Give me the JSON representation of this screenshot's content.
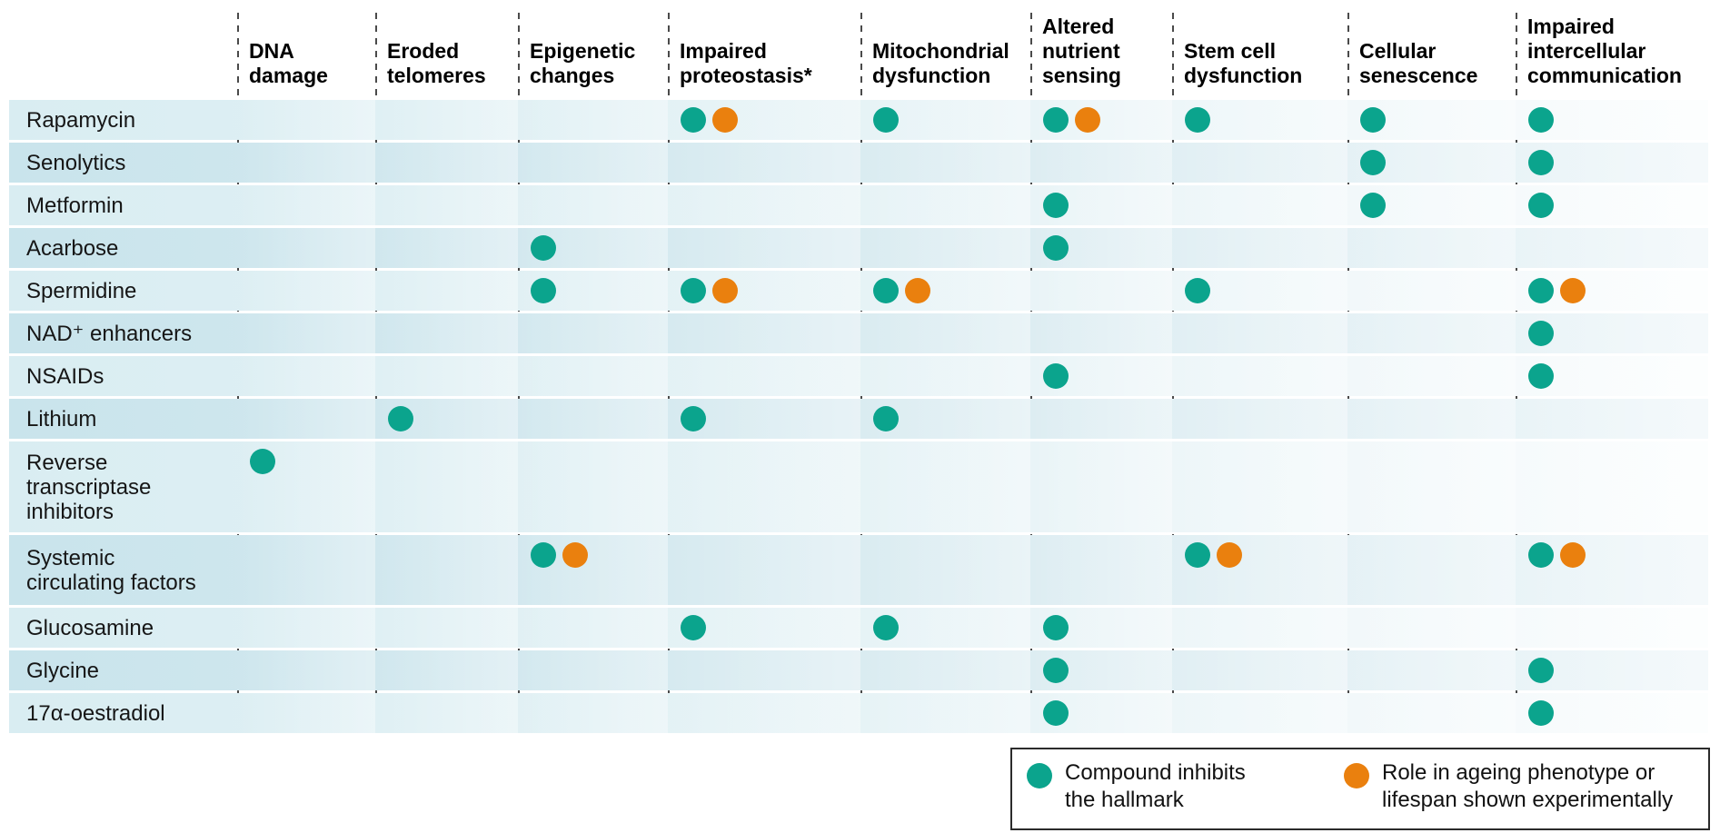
{
  "chart_data": {
    "type": "table",
    "description_of_marks": "dot matrix: compounds (rows) vs hallmarks of ageing (columns)",
    "columns": [
      "DNA\ndamage",
      "Eroded\ntelomeres",
      "Epigenetic\nchanges",
      "Impaired\nproteostasis*",
      "Mitochondrial\ndysfunction",
      "Altered\nnutrient\nsensing",
      "Stem cell\ndysfunction",
      "Cellular\nsenescence",
      "Impaired\nintercellular\ncommunication"
    ],
    "rows": [
      "Rapamycin",
      "Senolytics",
      "Metformin",
      "Acarbose",
      "Spermidine",
      "NAD⁺ enhancers",
      "NSAIDs",
      "Lithium",
      "Reverse\ntranscriptase\ninhibitors",
      "Systemic\ncirculating factors",
      "Glucosamine",
      "Glycine",
      "17α-oestradiol"
    ],
    "cell_codes": {
      "": "no mark",
      "T": "teal dot — compound inhibits the hallmark",
      "TO": "teal dot + orange dot — inhibits hallmark and role in ageing phenotype or lifespan shown experimentally"
    },
    "cells": [
      [
        "",
        "",
        "",
        "TO",
        "T",
        "TO",
        "T",
        "T",
        "T"
      ],
      [
        "",
        "",
        "",
        "",
        "",
        "",
        "",
        "T",
        "T"
      ],
      [
        "",
        "",
        "",
        "",
        "",
        "T",
        "",
        "T",
        "T"
      ],
      [
        "",
        "",
        "T",
        "",
        "",
        "T",
        "",
        "",
        ""
      ],
      [
        "",
        "",
        "T",
        "TO",
        "TO",
        "",
        "T",
        "",
        "TO"
      ],
      [
        "",
        "",
        "",
        "",
        "",
        "",
        "",
        "",
        "T"
      ],
      [
        "",
        "",
        "",
        "",
        "",
        "T",
        "",
        "",
        "T"
      ],
      [
        "",
        "T",
        "",
        "T",
        "T",
        "",
        "",
        "",
        ""
      ],
      [
        "T",
        "",
        "",
        "",
        "",
        "",
        "",
        "",
        ""
      ],
      [
        "",
        "",
        "TO",
        "",
        "",
        "",
        "TO",
        "",
        "TO"
      ],
      [
        "",
        "",
        "",
        "T",
        "T",
        "T",
        "",
        "",
        ""
      ],
      [
        "",
        "",
        "",
        "",
        "",
        "T",
        "",
        "",
        "T"
      ],
      [
        "",
        "",
        "",
        "",
        "",
        "T",
        "",
        "",
        "T"
      ]
    ],
    "legend": [
      {
        "marker": "inhibits-dot",
        "color": "#0ba48d",
        "label": "Compound inhibits\nthe hallmark"
      },
      {
        "marker": "experimental-dot",
        "color": "#ea800e",
        "label": "Role in ageing phenotype or\nlifespan shown experimentally"
      }
    ],
    "colors": {
      "inhibits_dot": "#0ba48d",
      "experimental_dot": "#ea800e",
      "row_tint_a": "#d9edf2",
      "row_tint_b": "#c9e4ec",
      "dashed_line": "#4a4a4a",
      "legend_border": "#2b2b2b"
    }
  }
}
